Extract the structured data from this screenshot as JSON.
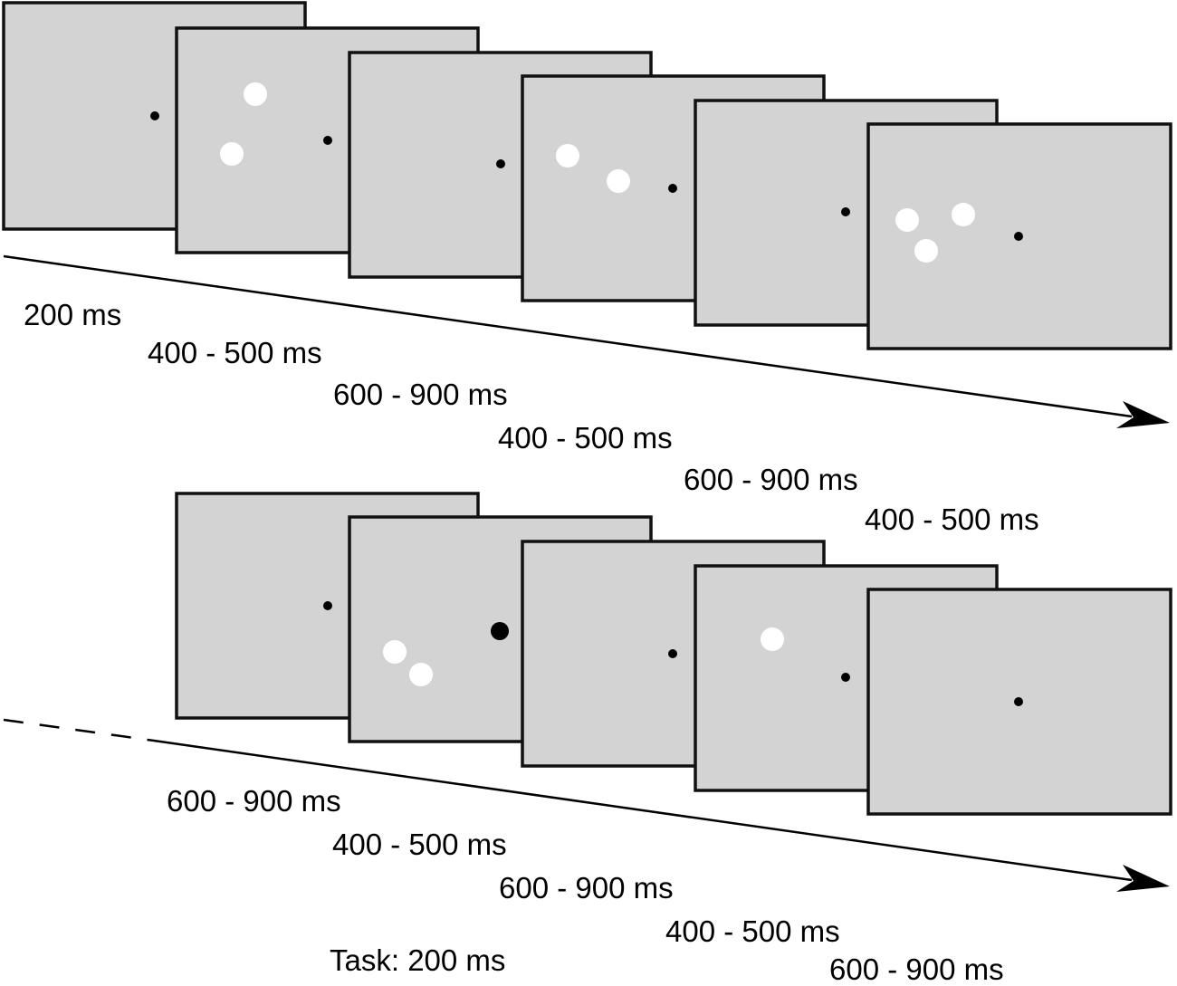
{
  "row1": {
    "durations": [
      "200 ms",
      "400 - 500 ms",
      "600 - 900 ms",
      "400 - 500 ms",
      "600 - 900 ms",
      "400 - 500 ms"
    ]
  },
  "row2": {
    "durations": [
      "600 - 900 ms",
      "400 - 500 ms",
      "600 - 900 ms",
      "400 - 500 ms",
      "600 - 900 ms"
    ],
    "task_label": "Task: 200 ms"
  },
  "colors": {
    "screen": "#d3d3d3",
    "stimulus": "#ffffff",
    "fixation": "#000000"
  }
}
